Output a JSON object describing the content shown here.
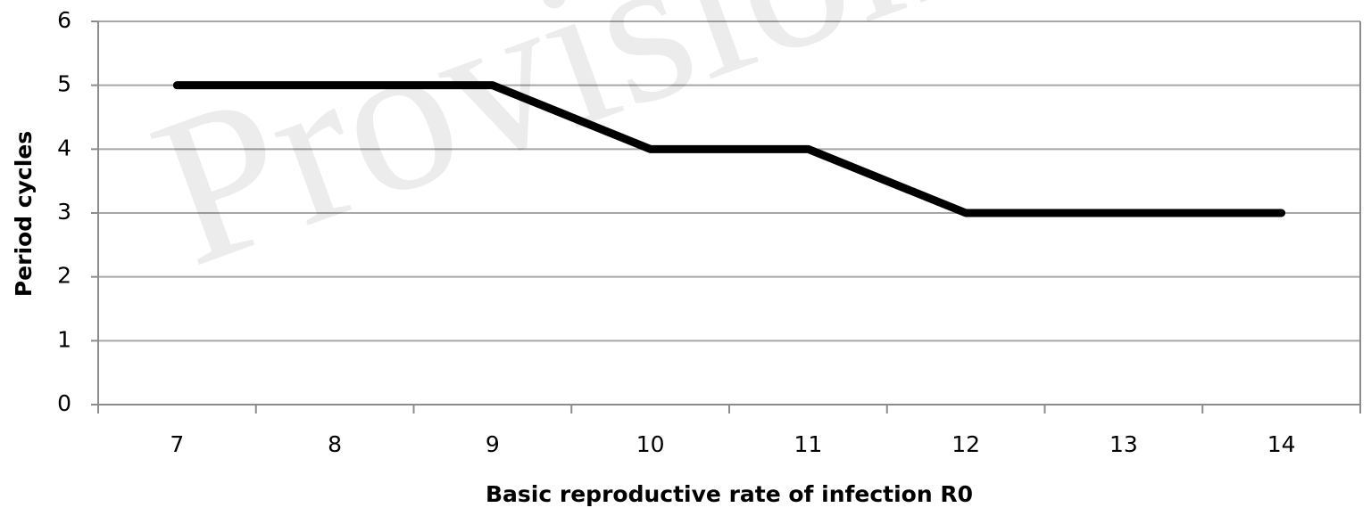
{
  "chart_data": {
    "type": "line",
    "watermark": "Provisional",
    "x_label": "Basic reproductive rate of infection R0",
    "y_label": "Period cycles",
    "categories": [
      "7",
      "8",
      "9",
      "10",
      "11",
      "12",
      "13",
      "14"
    ],
    "series": [
      {
        "name": "Period cycles",
        "color": "#000000",
        "values": [
          5,
          5,
          5,
          4,
          4,
          3,
          3,
          3
        ]
      }
    ],
    "ylim": [
      0,
      6
    ],
    "yticks": [
      0,
      1,
      2,
      3,
      4,
      5,
      6
    ],
    "grid": true
  }
}
